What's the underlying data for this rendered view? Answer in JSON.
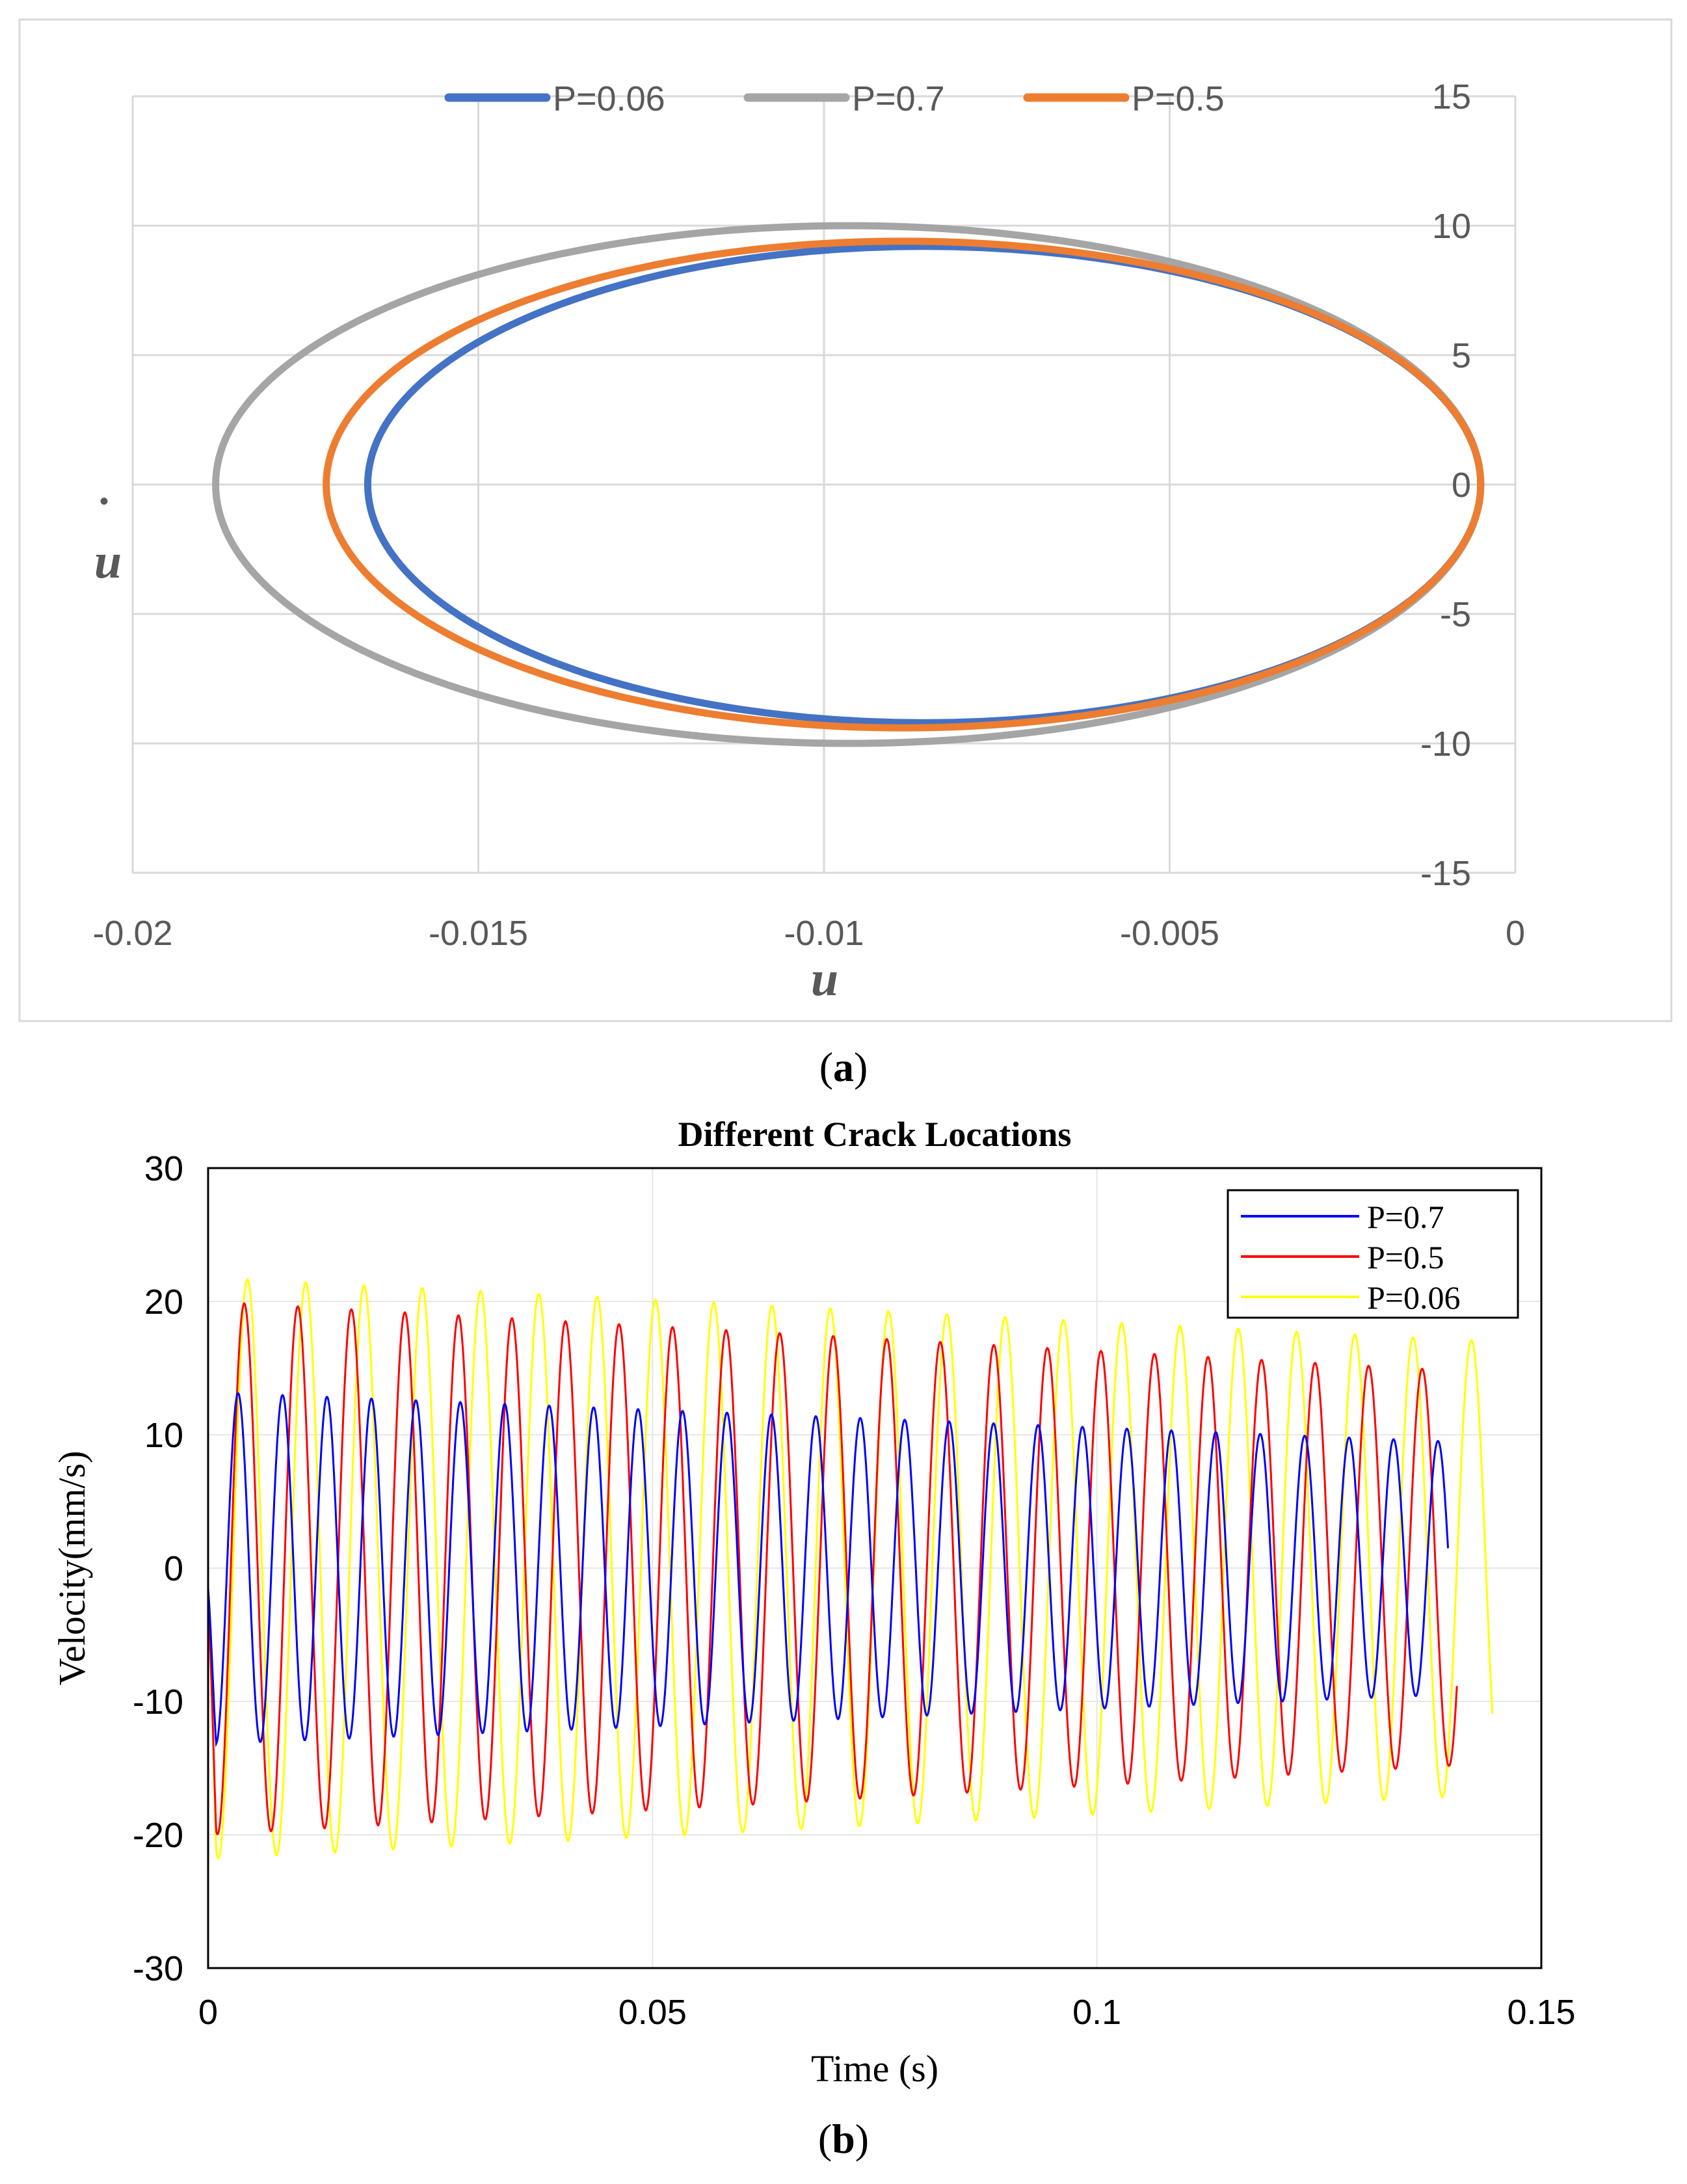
{
  "colors": {
    "a_p006": "#4472C4",
    "a_p07": "#A5A5A5",
    "a_p05": "#ED7D31",
    "b_p07": "#0000FF",
    "b_p05": "#FF0000",
    "b_p006": "#FFFF00",
    "grid_a": "#D9D9D9",
    "grid_b": "#E6E6E6",
    "text_a": "#595959"
  },
  "chart_data": [
    {
      "panel_label": "(a)",
      "label_open": "(",
      "label_letter": "a",
      "label_close": ")",
      "type": "line",
      "title": "",
      "xlabel": "u",
      "ylabel": "u",
      "ylabel_dot": "•",
      "xlim": [
        -0.02,
        0
      ],
      "ylim": [
        -15,
        15
      ],
      "xticks": [
        -0.02,
        -0.015,
        -0.01,
        -0.005,
        0
      ],
      "xtick_labels": [
        "-0.02",
        "-0.015",
        "-0.01",
        "-0.005",
        "0"
      ],
      "yticks": [
        15,
        10,
        5,
        0,
        -5,
        -10,
        -15
      ],
      "ytick_labels": [
        "15",
        "10",
        "5",
        "0",
        "-5",
        "-10",
        "-15"
      ],
      "grid": true,
      "legend_position": "top",
      "series": [
        {
          "name": "P=0.06",
          "color_key": "a_p006",
          "shape": "ellipse",
          "u_min": -0.0166,
          "u_max": -0.0005,
          "udot_max": 9.2,
          "udot_min": -9.2
        },
        {
          "name": "P=0.7",
          "color_key": "a_p07",
          "shape": "ellipse",
          "u_min": -0.0188,
          "u_max": -0.0005,
          "udot_max": 10.0,
          "udot_min": -10.0
        },
        {
          "name": "P=0.5",
          "color_key": "a_p05",
          "shape": "ellipse",
          "u_min": -0.0172,
          "u_max": -0.0005,
          "udot_max": 9.4,
          "udot_min": -9.4
        }
      ]
    },
    {
      "panel_label": "(b)",
      "label_open": "(",
      "label_letter": "b",
      "label_close": ")",
      "type": "line",
      "title": "Different Crack Locations",
      "xlabel": "Time (s)",
      "ylabel": "Velocity(mm/s)",
      "xlim": [
        0,
        0.15
      ],
      "ylim": [
        -30,
        30
      ],
      "xticks": [
        0,
        0.05,
        0.1,
        0.15
      ],
      "xtick_labels": [
        "0",
        "0.05",
        "0.1",
        "0.15"
      ],
      "yticks": [
        30,
        20,
        10,
        0,
        -10,
        -20,
        -30
      ],
      "ytick_labels": [
        "30",
        "20",
        "10",
        "0",
        "-10",
        "-20",
        "-30"
      ],
      "grid": true,
      "legend_position": "top-right",
      "series": [
        {
          "name": "P=0.7",
          "color_key": "b_p07",
          "shape": "sine",
          "t_end": 0.1395,
          "frequency_hz": 200,
          "amp_start": 13.2,
          "amp_end": 9.5
        },
        {
          "name": "P=0.5",
          "color_key": "b_p05",
          "shape": "sine",
          "t_end": 0.1405,
          "frequency_hz": 166,
          "amp_start": 20.0,
          "amp_end": 14.8
        },
        {
          "name": "P=0.06",
          "color_key": "b_p006",
          "shape": "sine",
          "t_end": 0.1445,
          "frequency_hz": 152.5,
          "amp_start": 21.8,
          "amp_end": 17.0
        }
      ]
    }
  ]
}
